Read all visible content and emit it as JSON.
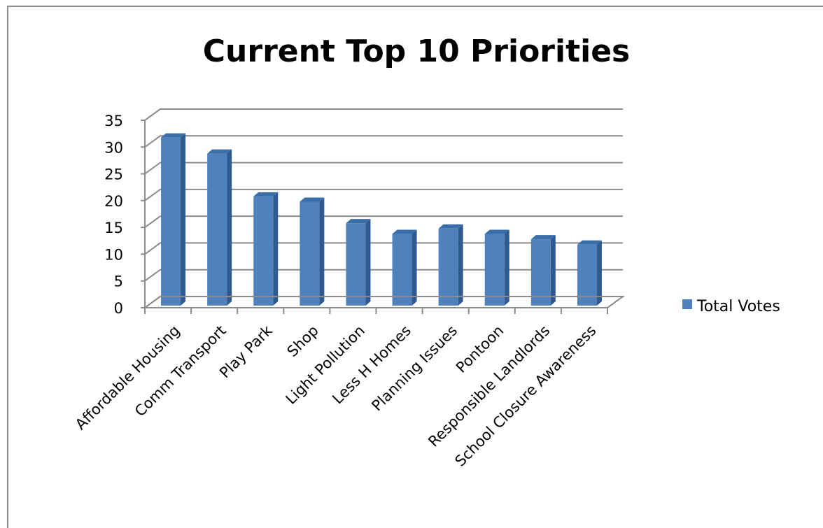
{
  "chart_data": {
    "type": "bar",
    "title": "Current Top 10 Priorities",
    "categories": [
      "Affordable Housing",
      "Comm Transport",
      "Play Park",
      "Shop",
      "Light Pollution",
      "Less H Homes",
      "Planning Issues",
      "Pontoon",
      "Responsible Landlords",
      "School Closure Awareness"
    ],
    "series": [
      {
        "name": "Total Votes",
        "values": [
          31,
          28,
          20,
          19,
          15,
          13,
          14,
          13,
          12,
          11
        ],
        "color": "#4f81bd"
      }
    ],
    "ylim": [
      0,
      35
    ],
    "yticks": [
      "0",
      "5",
      "10",
      "15",
      "20",
      "25",
      "30",
      "35"
    ],
    "grid": true,
    "legend": "right",
    "style": "3d-column"
  }
}
